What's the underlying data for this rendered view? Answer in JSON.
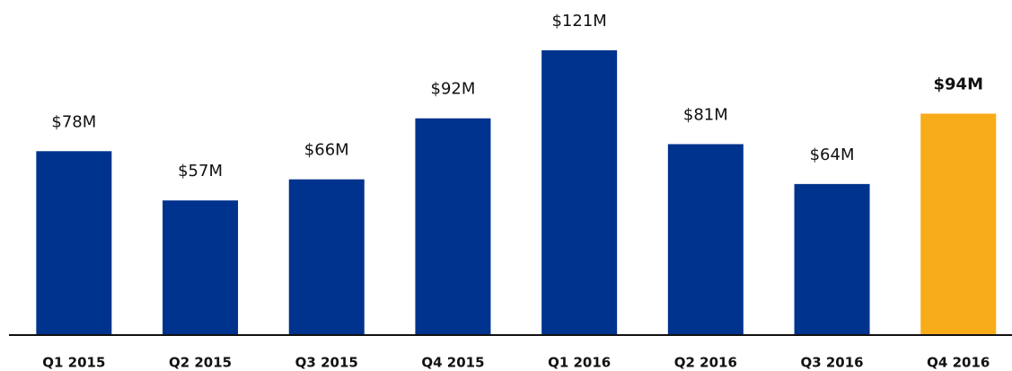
{
  "chart_data": {
    "type": "bar",
    "categories": [
      "Q1 2015",
      "Q2 2015",
      "Q3 2015",
      "Q4 2015",
      "Q1 2016",
      "Q2 2016",
      "Q3 2016",
      "Q4 2016"
    ],
    "values": [
      78,
      57,
      66,
      92,
      121,
      81,
      64,
      94
    ],
    "value_labels": [
      "$78M",
      "$57M",
      "$66M",
      "$92M",
      "$121M",
      "$81M",
      "$64M",
      "$94M"
    ],
    "colors": [
      "#00338d",
      "#00338d",
      "#00338d",
      "#00338d",
      "#00338d",
      "#00338d",
      "#00338d",
      "#f8ac1a"
    ],
    "ylim": [
      0,
      121
    ]
  }
}
